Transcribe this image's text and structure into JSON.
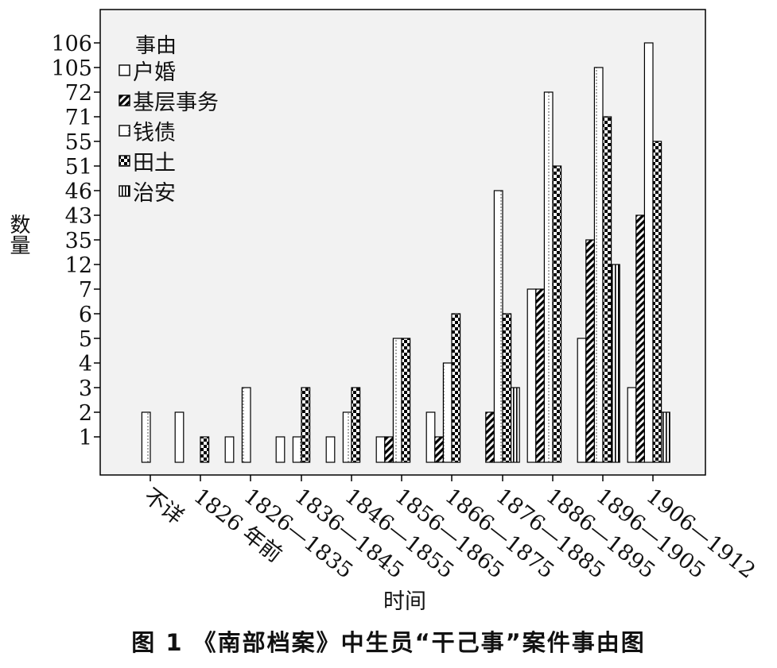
{
  "figure_caption": "图 1 《南部档案》中生员“干己事”案件事由图",
  "chart_data": {
    "type": "bar",
    "title": "",
    "xlabel": "时间",
    "ylabel": "数量",
    "y_ticks": [
      "106",
      "105",
      "72",
      "71",
      "55",
      "51",
      "46",
      "43",
      "35",
      "12",
      "7",
      "6",
      "5",
      "4",
      "3",
      "2",
      "1"
    ],
    "y_scale": "categorical (each printed tick value is one equally spaced level)",
    "categories": [
      "不详",
      "1826 年前",
      "1826—1835",
      "1836—1845",
      "1846—1855",
      "1856—1865",
      "1866—1875",
      "1876—1885",
      "1886—1895",
      "1896—1905",
      "1906—1912"
    ],
    "legend_title": "事由",
    "legend_position": "top-left",
    "grid": false,
    "background": "#f2f2f2",
    "series": [
      {
        "name": "户婚",
        "pattern": "open",
        "values": [
          null,
          2,
          1,
          1,
          1,
          1,
          2,
          null,
          7,
          5,
          3
        ]
      },
      {
        "name": "基层事务",
        "pattern": "diagonal",
        "values": [
          null,
          null,
          null,
          null,
          null,
          1,
          1,
          2,
          7,
          35,
          43
        ]
      },
      {
        "name": "钱债",
        "pattern": "dotted",
        "values": [
          2,
          null,
          3,
          1,
          2,
          5,
          4,
          46,
          72,
          105,
          106
        ]
      },
      {
        "name": "田土",
        "pattern": "checker",
        "values": [
          null,
          1,
          null,
          3,
          3,
          5,
          6,
          6,
          51,
          71,
          55
        ]
      },
      {
        "name": "治安",
        "pattern": "vertical",
        "values": [
          null,
          null,
          null,
          null,
          null,
          null,
          null,
          3,
          null,
          12,
          2
        ]
      }
    ]
  }
}
